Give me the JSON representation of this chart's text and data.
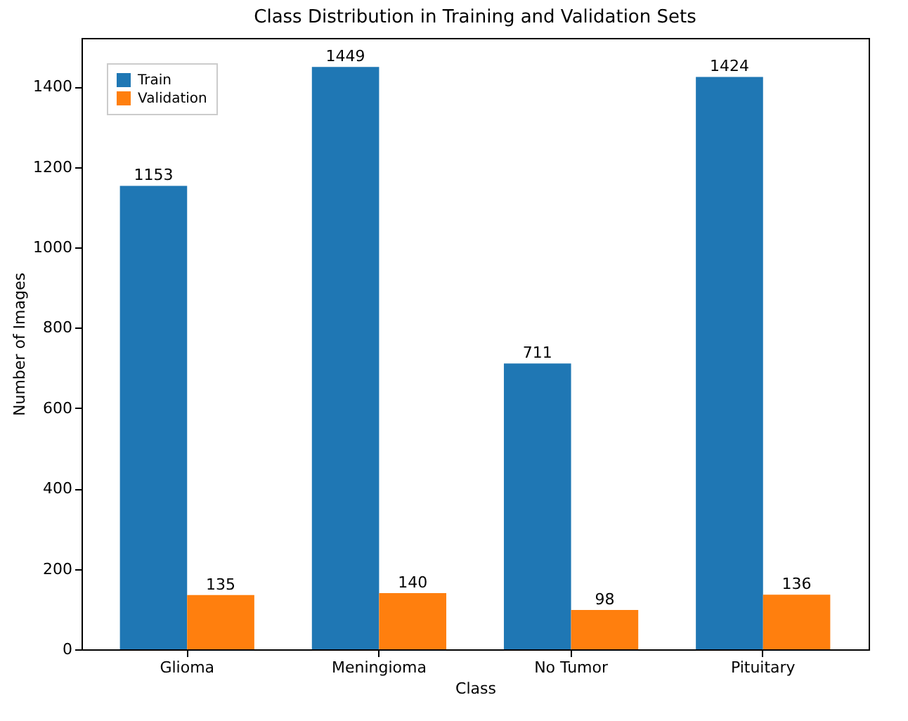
{
  "chart_data": {
    "type": "bar",
    "title": "Class Distribution in Training and Validation Sets",
    "xlabel": "Class",
    "ylabel": "Number of Images",
    "categories": [
      "Glioma",
      "Meningioma",
      "No Tumor",
      "Pituitary"
    ],
    "series": [
      {
        "name": "Train",
        "color": "#1f77b4",
        "values": [
          1153,
          1449,
          711,
          1424
        ]
      },
      {
        "name": "Validation",
        "color": "#ff7f0e",
        "values": [
          135,
          140,
          98,
          136
        ]
      }
    ],
    "ylim": [
      0,
      1521
    ],
    "yticks": [
      0,
      200,
      400,
      600,
      800,
      1000,
      1200,
      1400
    ],
    "grid": false,
    "legend": "top left",
    "data_labels": true
  }
}
